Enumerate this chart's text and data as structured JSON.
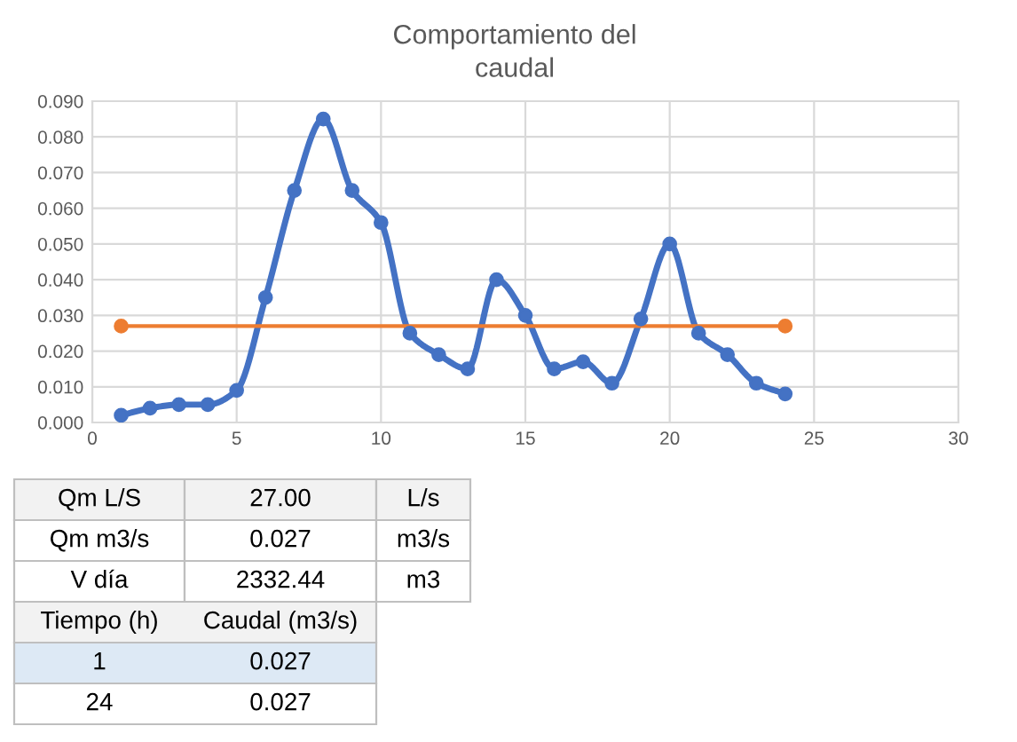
{
  "chart_data": {
    "type": "line",
    "title": "Comportamiento del\ncaudal",
    "xlim": [
      0,
      30
    ],
    "xticks": [
      0,
      5,
      10,
      15,
      20,
      25,
      30
    ],
    "ylim": [
      0,
      0.09
    ],
    "yticks": [
      {
        "value": 0,
        "label": "0.000"
      },
      {
        "value": 0.01,
        "label": "0.010"
      },
      {
        "value": 0.02,
        "label": "0.020"
      },
      {
        "value": 0.03,
        "label": "0.030"
      },
      {
        "value": 0.04,
        "label": "0.040"
      },
      {
        "value": 0.05,
        "label": "0.050"
      },
      {
        "value": 0.06,
        "label": "0.060"
      },
      {
        "value": 0.07,
        "label": "0.070"
      },
      {
        "value": 0.08,
        "label": "0.080"
      },
      {
        "value": 0.09,
        "label": "0.090"
      }
    ],
    "grid": true,
    "marker": "circle",
    "line_style": "solid",
    "series": [
      {
        "color": "#4472c4",
        "x": [
          1,
          2,
          3,
          4,
          5,
          6,
          7,
          8,
          9,
          10,
          11,
          12,
          13,
          14,
          15,
          16,
          17,
          18,
          19,
          20,
          21,
          22,
          23,
          24
        ],
        "values": [
          0.002,
          0.004,
          0.005,
          0.005,
          0.009,
          0.035,
          0.065,
          0.085,
          0.065,
          0.056,
          0.025,
          0.019,
          0.015,
          0.04,
          0.03,
          0.015,
          0.017,
          0.011,
          0.029,
          0.05,
          0.025,
          0.019,
          0.011,
          0.008
        ]
      },
      {
        "color": "#ed7d31",
        "x": [
          1,
          24
        ],
        "values": [
          0.027,
          0.027
        ]
      }
    ],
    "annotations": [
      "Qm L/S",
      "27.00",
      "L/s",
      "Qm m3/s",
      "0.027",
      "m3/s",
      "V día",
      "2332.44",
      "m3",
      "Tiempo (h)",
      "Caudal (m3/s)",
      "1",
      "0.027",
      "24",
      "0.027"
    ]
  }
}
